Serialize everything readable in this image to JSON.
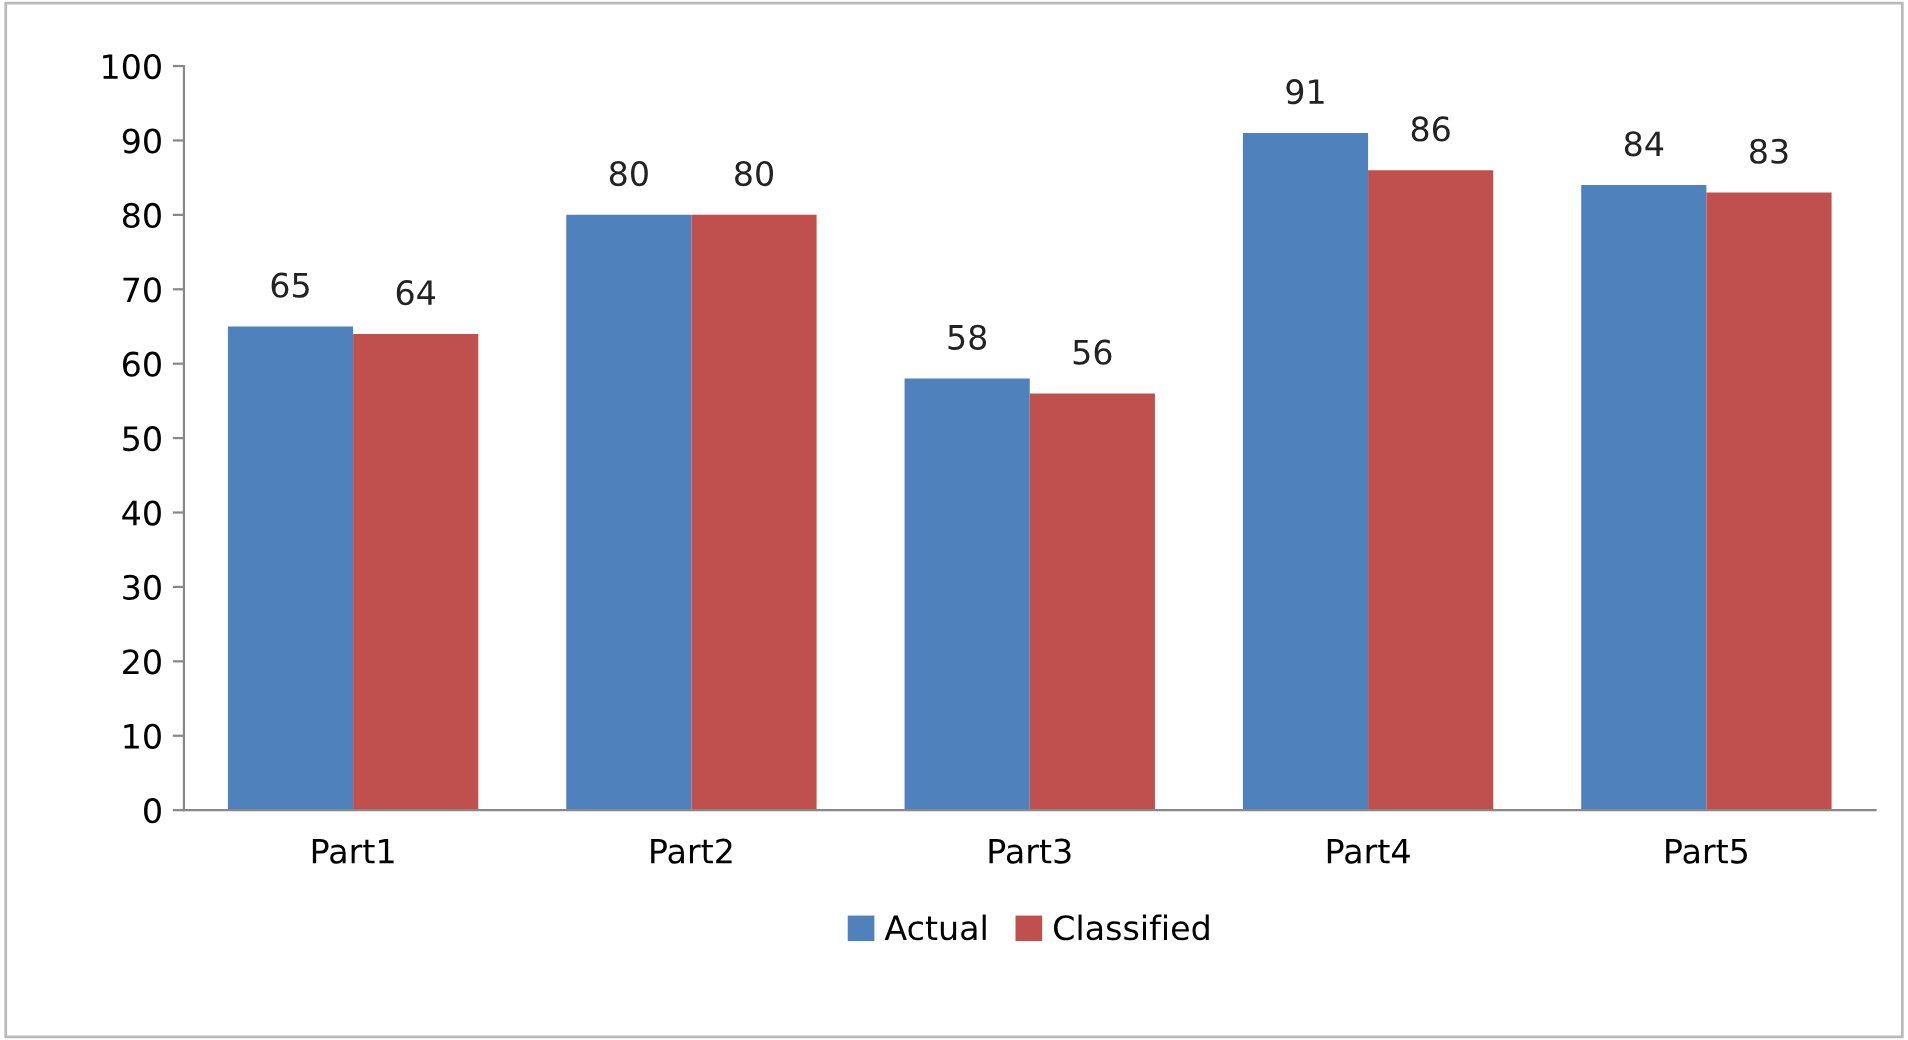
{
  "chart_data": {
    "type": "bar",
    "categories": [
      "Part1",
      "Part2",
      "Part3",
      "Part4",
      "Part5"
    ],
    "series": [
      {
        "name": "Actual",
        "color": "#4f81bd",
        "values": [
          65,
          80,
          58,
          91,
          84
        ]
      },
      {
        "name": "Classified",
        "color": "#c0504d",
        "values": [
          64,
          80,
          56,
          86,
          83
        ]
      }
    ],
    "ylim": [
      0,
      100
    ],
    "yticks": [
      0,
      10,
      20,
      30,
      40,
      50,
      60,
      70,
      80,
      90,
      100
    ],
    "grid": false,
    "legend": "bottom",
    "data_labels": true
  }
}
